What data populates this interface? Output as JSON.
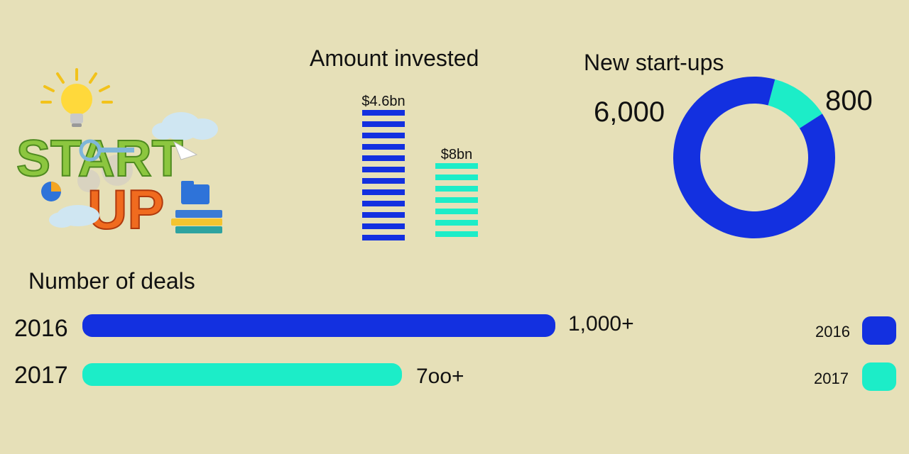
{
  "colors": {
    "series_2016": "#1330e0",
    "series_2017": "#1cedc8",
    "background": "#e6e0b8"
  },
  "logo": {
    "word1": "START",
    "word2": "UP"
  },
  "chart_data": [
    {
      "type": "bar",
      "title": "Amount invested",
      "categories": [
        "2016",
        "2017"
      ],
      "values": [
        4.6,
        8
      ],
      "value_labels": [
        "$4.6bn",
        "$8bn"
      ],
      "note": "bar heights are stylized, not proportional"
    },
    {
      "type": "pie",
      "title": "New start-ups",
      "categories": [
        "2016",
        "2017"
      ],
      "values": [
        6000,
        800
      ],
      "value_labels": [
        "6,000",
        "800"
      ]
    },
    {
      "type": "bar",
      "orientation": "horizontal",
      "title": "Number of deals",
      "categories": [
        "2016",
        "2017"
      ],
      "values": [
        1000,
        700
      ],
      "value_labels": [
        "1,000+",
        "7oo+"
      ]
    }
  ],
  "legend": [
    {
      "label": "2016",
      "color": "#1330e0"
    },
    {
      "label": "2017",
      "color": "#1cedc8"
    }
  ]
}
